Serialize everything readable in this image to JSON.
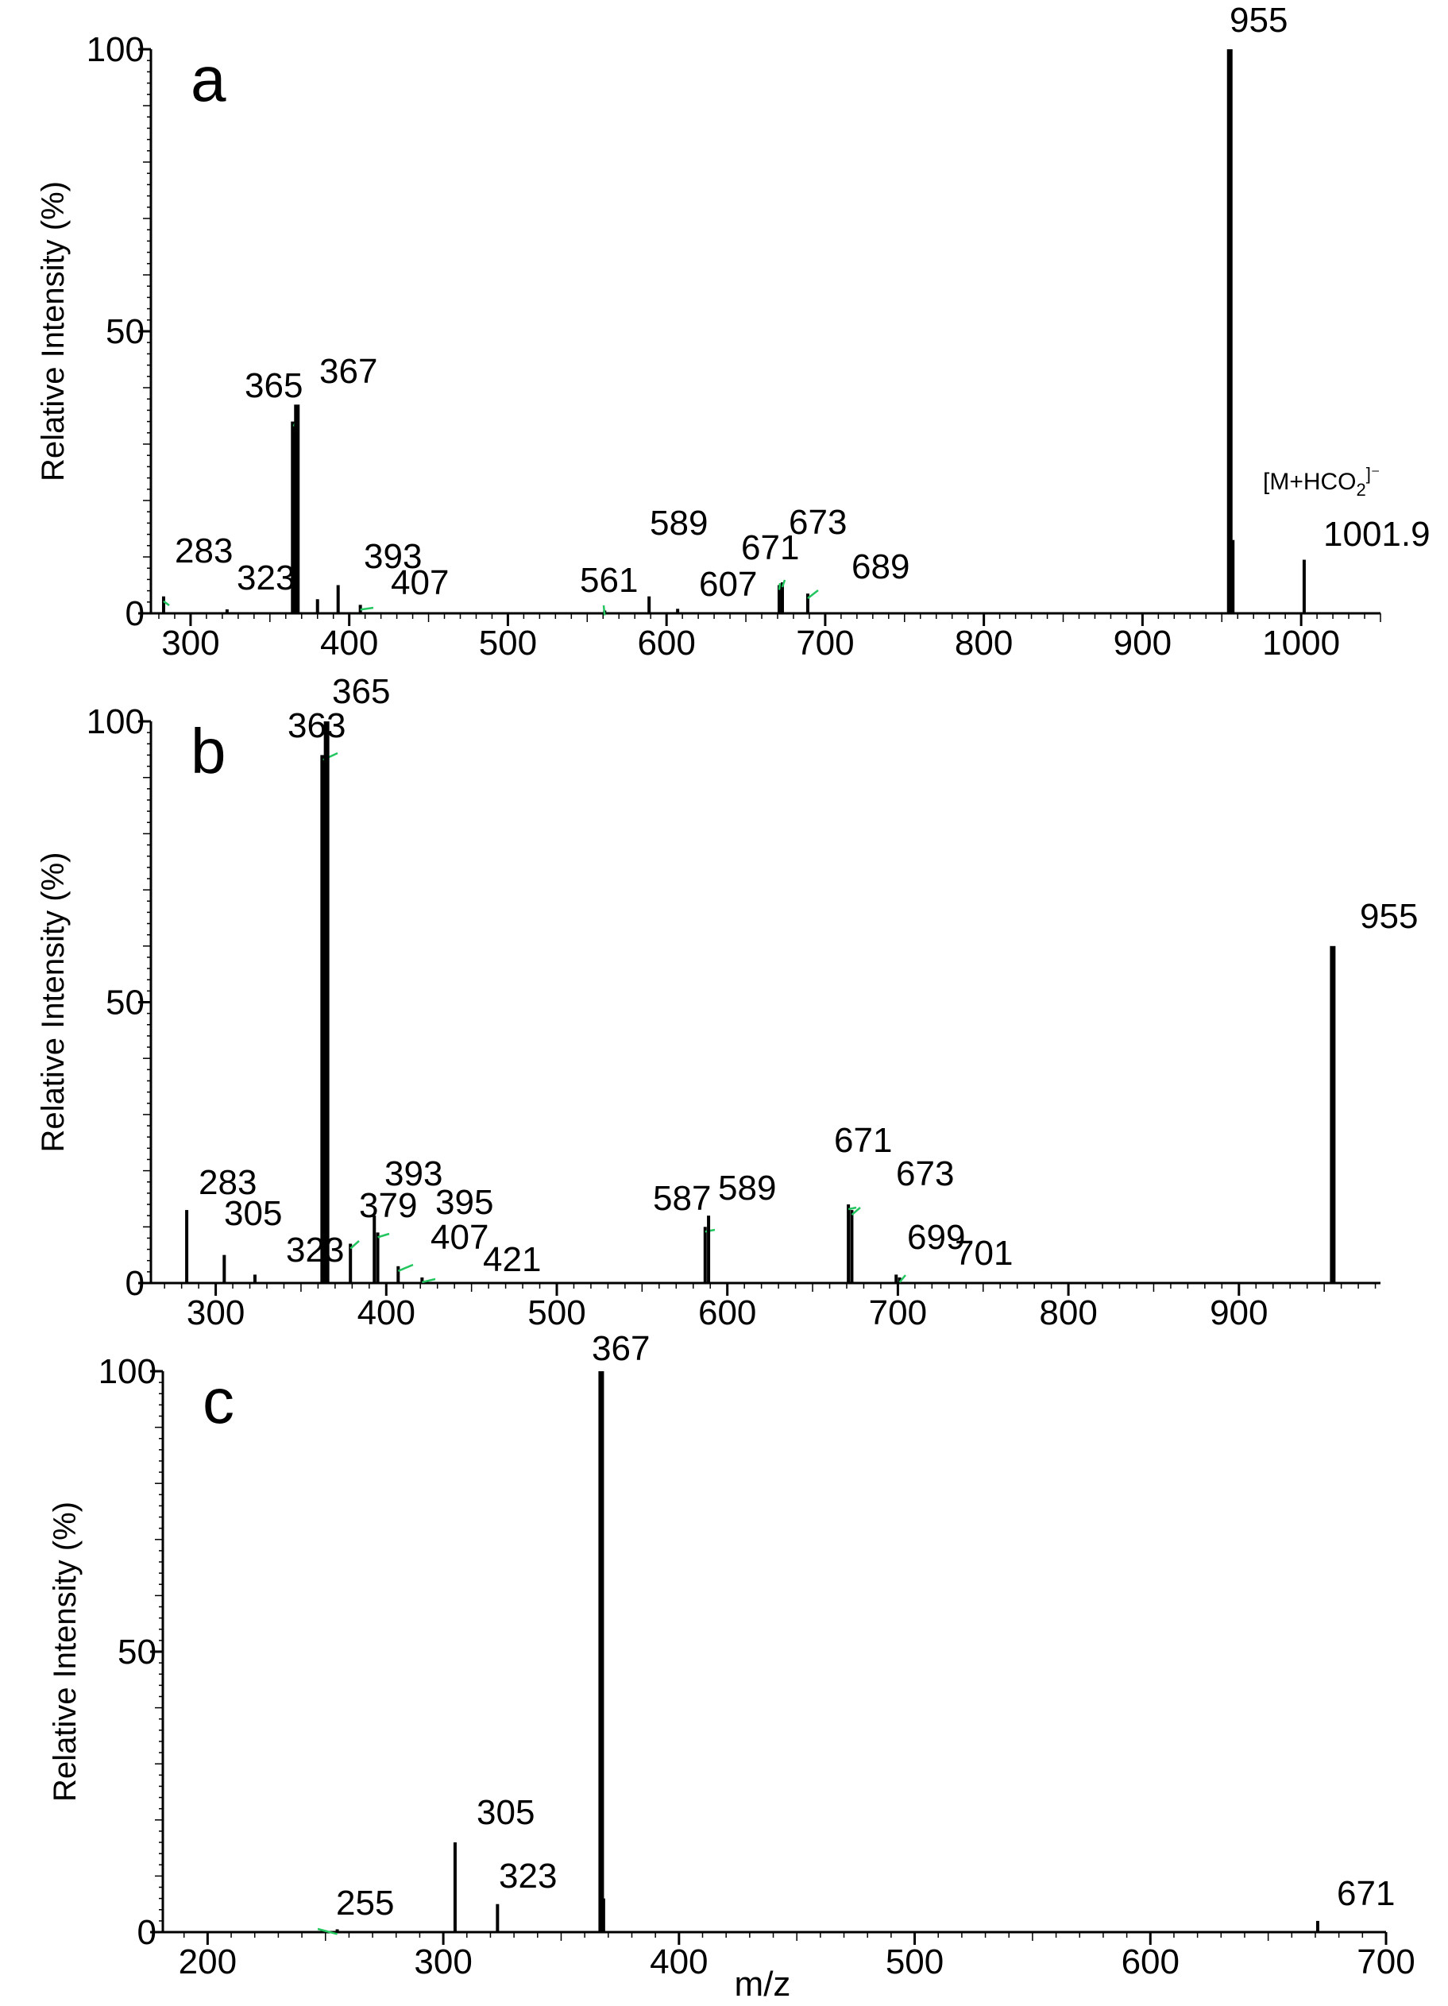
{
  "chart_data": [
    {
      "type": "bar",
      "panel": "a",
      "ylabel": "Relative Intensity (%)",
      "xlabel": "",
      "xlim": [
        275,
        1050
      ],
      "ylim": [
        0,
        100
      ],
      "xticks": [
        300,
        400,
        500,
        600,
        700,
        800,
        900,
        1000
      ],
      "yticks": [
        0,
        50,
        100
      ],
      "annotation": {
        "text": "[M+HCO",
        "sub": "2",
        "sup": "]⁻",
        "x": 1001.9
      },
      "peaks": [
        {
          "mz": 283,
          "intensity": 3,
          "label": "283",
          "labelled": true
        },
        {
          "mz": 323,
          "intensity": 0.7,
          "label": "323",
          "labelled": true
        },
        {
          "mz": 365,
          "intensity": 34,
          "label": "365",
          "labelled": true
        },
        {
          "mz": 367,
          "intensity": 37,
          "label": "367",
          "labelled": true
        },
        {
          "mz": 380,
          "intensity": 2.5,
          "label": "",
          "labelled": false
        },
        {
          "mz": 393,
          "intensity": 5,
          "label": "393",
          "labelled": true
        },
        {
          "mz": 407,
          "intensity": 1.5,
          "label": "407",
          "labelled": true
        },
        {
          "mz": 561,
          "intensity": 0.5,
          "label": "561",
          "labelled": true
        },
        {
          "mz": 589,
          "intensity": 3,
          "label": "589",
          "labelled": true
        },
        {
          "mz": 607,
          "intensity": 0.8,
          "label": "607",
          "labelled": true
        },
        {
          "mz": 671,
          "intensity": 5,
          "label": "671",
          "labelled": true
        },
        {
          "mz": 673,
          "intensity": 5.5,
          "label": "673",
          "labelled": true
        },
        {
          "mz": 689,
          "intensity": 3.5,
          "label": "689",
          "labelled": true
        },
        {
          "mz": 955,
          "intensity": 100,
          "label": "955",
          "labelled": true
        },
        {
          "mz": 957,
          "intensity": 13,
          "label": "",
          "labelled": false
        },
        {
          "mz": 1001.9,
          "intensity": 9.5,
          "label": "1001.9",
          "labelled": true
        }
      ]
    },
    {
      "type": "bar",
      "panel": "b",
      "ylabel": "Relative Intensity (%)",
      "xlabel": "",
      "xlim": [
        262,
        983
      ],
      "ylim": [
        0,
        100
      ],
      "xticks": [
        300,
        400,
        500,
        600,
        700,
        800,
        900
      ],
      "yticks": [
        0,
        50,
        100
      ],
      "peaks": [
        {
          "mz": 283,
          "intensity": 13,
          "label": "283",
          "labelled": true
        },
        {
          "mz": 305,
          "intensity": 5,
          "label": "305",
          "labelled": true
        },
        {
          "mz": 323,
          "intensity": 1.5,
          "label": "323",
          "labelled": true
        },
        {
          "mz": 363,
          "intensity": 94,
          "label": "363",
          "labelled": true
        },
        {
          "mz": 365,
          "intensity": 100,
          "label": "365",
          "labelled": true
        },
        {
          "mz": 379,
          "intensity": 7,
          "label": "379",
          "labelled": true
        },
        {
          "mz": 393,
          "intensity": 12,
          "label": "393",
          "labelled": true
        },
        {
          "mz": 395,
          "intensity": 9,
          "label": "395",
          "labelled": true
        },
        {
          "mz": 407,
          "intensity": 3,
          "label": "407",
          "labelled": true
        },
        {
          "mz": 421,
          "intensity": 1,
          "label": "421",
          "labelled": true
        },
        {
          "mz": 587,
          "intensity": 10,
          "label": "587",
          "labelled": true
        },
        {
          "mz": 589,
          "intensity": 12,
          "label": "589",
          "labelled": true
        },
        {
          "mz": 671,
          "intensity": 14,
          "label": "671",
          "labelled": true
        },
        {
          "mz": 673,
          "intensity": 13,
          "label": "673",
          "labelled": true
        },
        {
          "mz": 699,
          "intensity": 1.5,
          "label": "699",
          "labelled": true
        },
        {
          "mz": 701,
          "intensity": 1,
          "label": "701",
          "labelled": true
        },
        {
          "mz": 955,
          "intensity": 60,
          "label": "955",
          "labelled": true
        }
      ]
    },
    {
      "type": "bar",
      "panel": "c",
      "ylabel": "Relative Intensity (%)",
      "xlabel": "m/z",
      "xlim": [
        181,
        700
      ],
      "ylim": [
        0,
        100
      ],
      "xticks": [
        200,
        300,
        400,
        500,
        600,
        700
      ],
      "yticks": [
        0,
        50,
        100
      ],
      "peaks": [
        {
          "mz": 255,
          "intensity": 0.5,
          "label": "255",
          "labelled": true
        },
        {
          "mz": 305,
          "intensity": 16,
          "label": "305",
          "labelled": true
        },
        {
          "mz": 323,
          "intensity": 5,
          "label": "323",
          "labelled": true
        },
        {
          "mz": 367,
          "intensity": 100,
          "label": "367",
          "labelled": true
        },
        {
          "mz": 368,
          "intensity": 6,
          "label": "",
          "labelled": false
        },
        {
          "mz": 671,
          "intensity": 2,
          "label": "671",
          "labelled": true
        }
      ]
    }
  ]
}
